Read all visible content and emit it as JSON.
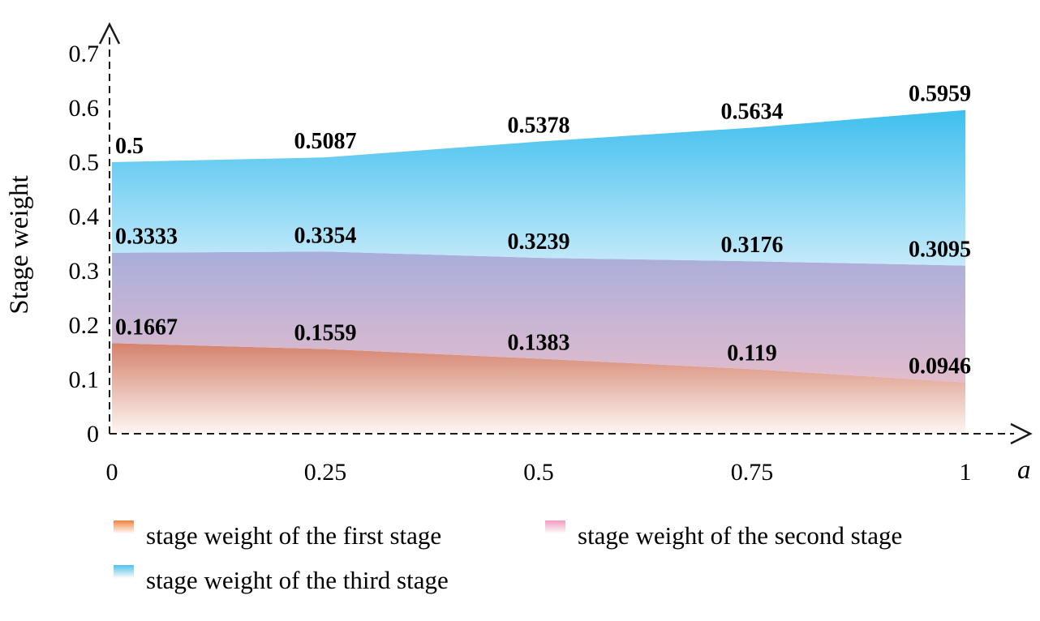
{
  "chart_data": {
    "type": "area",
    "title": "",
    "xlabel": "a",
    "ylabel": "Stage weight",
    "x": [
      0,
      0.25,
      0.5,
      0.75,
      1
    ],
    "x_tick_labels": [
      "0",
      "0.25",
      "0.5",
      "0.75",
      "1"
    ],
    "y_ticks": [
      0,
      0.1,
      0.2,
      0.3,
      0.4,
      0.5,
      0.6,
      0.7
    ],
    "y_tick_labels": [
      "0",
      "0.1",
      "0.2",
      "0.3",
      "0.4",
      "0.5",
      "0.6",
      "0.7"
    ],
    "xlim": [
      0,
      1
    ],
    "ylim": [
      0,
      0.7
    ],
    "grid": false,
    "legend_position": "bottom-left",
    "axis_style": "dashed-with-arrows",
    "axis_color": "#1a1a1a",
    "label_color": "#000000",
    "series": [
      {
        "name": "stage weight of the first stage",
        "values": [
          0.1667,
          0.1559,
          0.1383,
          0.119,
          0.0946
        ],
        "value_labels": [
          "0.1667",
          "0.1559",
          "0.1383",
          "0.119",
          "0.0946"
        ],
        "fill_top": "#d4826c",
        "fill_bottom": "#fdf6f4",
        "legend_color": "#ee8440"
      },
      {
        "name": "stage weight of the second stage",
        "values": [
          0.3333,
          0.3354,
          0.3239,
          0.3176,
          0.3095
        ],
        "value_labels": [
          "0.3333",
          "0.3354",
          "0.3239",
          "0.3176",
          "0.3095"
        ],
        "fill_top": "#a9aeda",
        "fill_bottom": "#e2bccd",
        "legend_color": "#f19cc0"
      },
      {
        "name": "stage weight of the third stage",
        "values": [
          0.5,
          0.5087,
          0.5378,
          0.5634,
          0.5959
        ],
        "value_labels": [
          "0.5",
          "0.5087",
          "0.5378",
          "0.5634",
          "0.5959"
        ],
        "fill_top": "#3fbfee",
        "fill_bottom": "#c6eafa",
        "legend_color": "#4ec2eb"
      }
    ]
  }
}
